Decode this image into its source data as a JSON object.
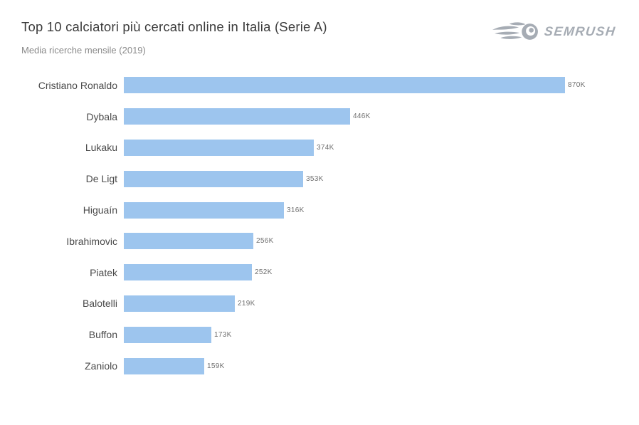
{
  "header": {
    "title": "Top 10 calciatori più cercati online in Italia (Serie A)",
    "subtitle": "Media ricerche mensile (2019)",
    "logo_text": "SEMRUSH"
  },
  "colors": {
    "bar": "#9DC5EE",
    "title": "#3b3b3b",
    "subtitle": "#8a8a8a",
    "row_label": "#4a4a4a",
    "value_label": "#6f6f6f",
    "logo": "#a6acb4",
    "background": "#ffffff"
  },
  "chart_data": {
    "type": "bar",
    "orientation": "horizontal",
    "title": "Top 10 calciatori più cercati online in Italia (Serie A)",
    "subtitle": "Media ricerche mensile (2019)",
    "categories": [
      "Cristiano Ronaldo",
      "Dybala",
      "Lukaku",
      "De Ligt",
      "Higuaín",
      "Ibrahimovic",
      "Piatek",
      "Balotelli",
      "Buffon",
      "Zaniolo"
    ],
    "values": [
      870000,
      446000,
      374000,
      353000,
      316000,
      256000,
      252000,
      219000,
      173000,
      159000
    ],
    "value_labels": [
      "870K",
      "446K",
      "374K",
      "353K",
      "316K",
      "256K",
      "252K",
      "219K",
      "173K",
      "159K"
    ],
    "xlim": [
      0,
      870000
    ],
    "xlabel": "",
    "ylabel": "",
    "grid": false,
    "legend": false,
    "bar_color": "#9DC5EE"
  }
}
